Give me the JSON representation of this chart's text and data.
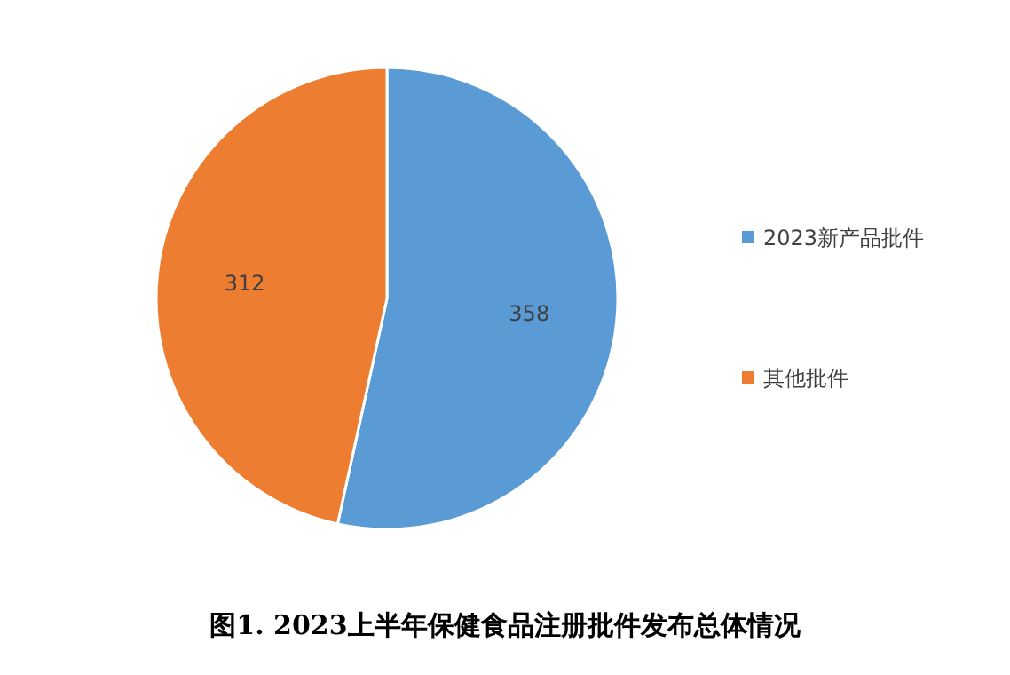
{
  "chart_data": {
    "type": "pie",
    "title": "图1. 2023上半年保健食品注册批件发布总体情况",
    "categories": [
      "2023新产品批件",
      "其他批件"
    ],
    "values": [
      358,
      312
    ],
    "colors": [
      "#5b9bd5",
      "#ed7d31"
    ],
    "data_labels": true,
    "legend": "right"
  }
}
